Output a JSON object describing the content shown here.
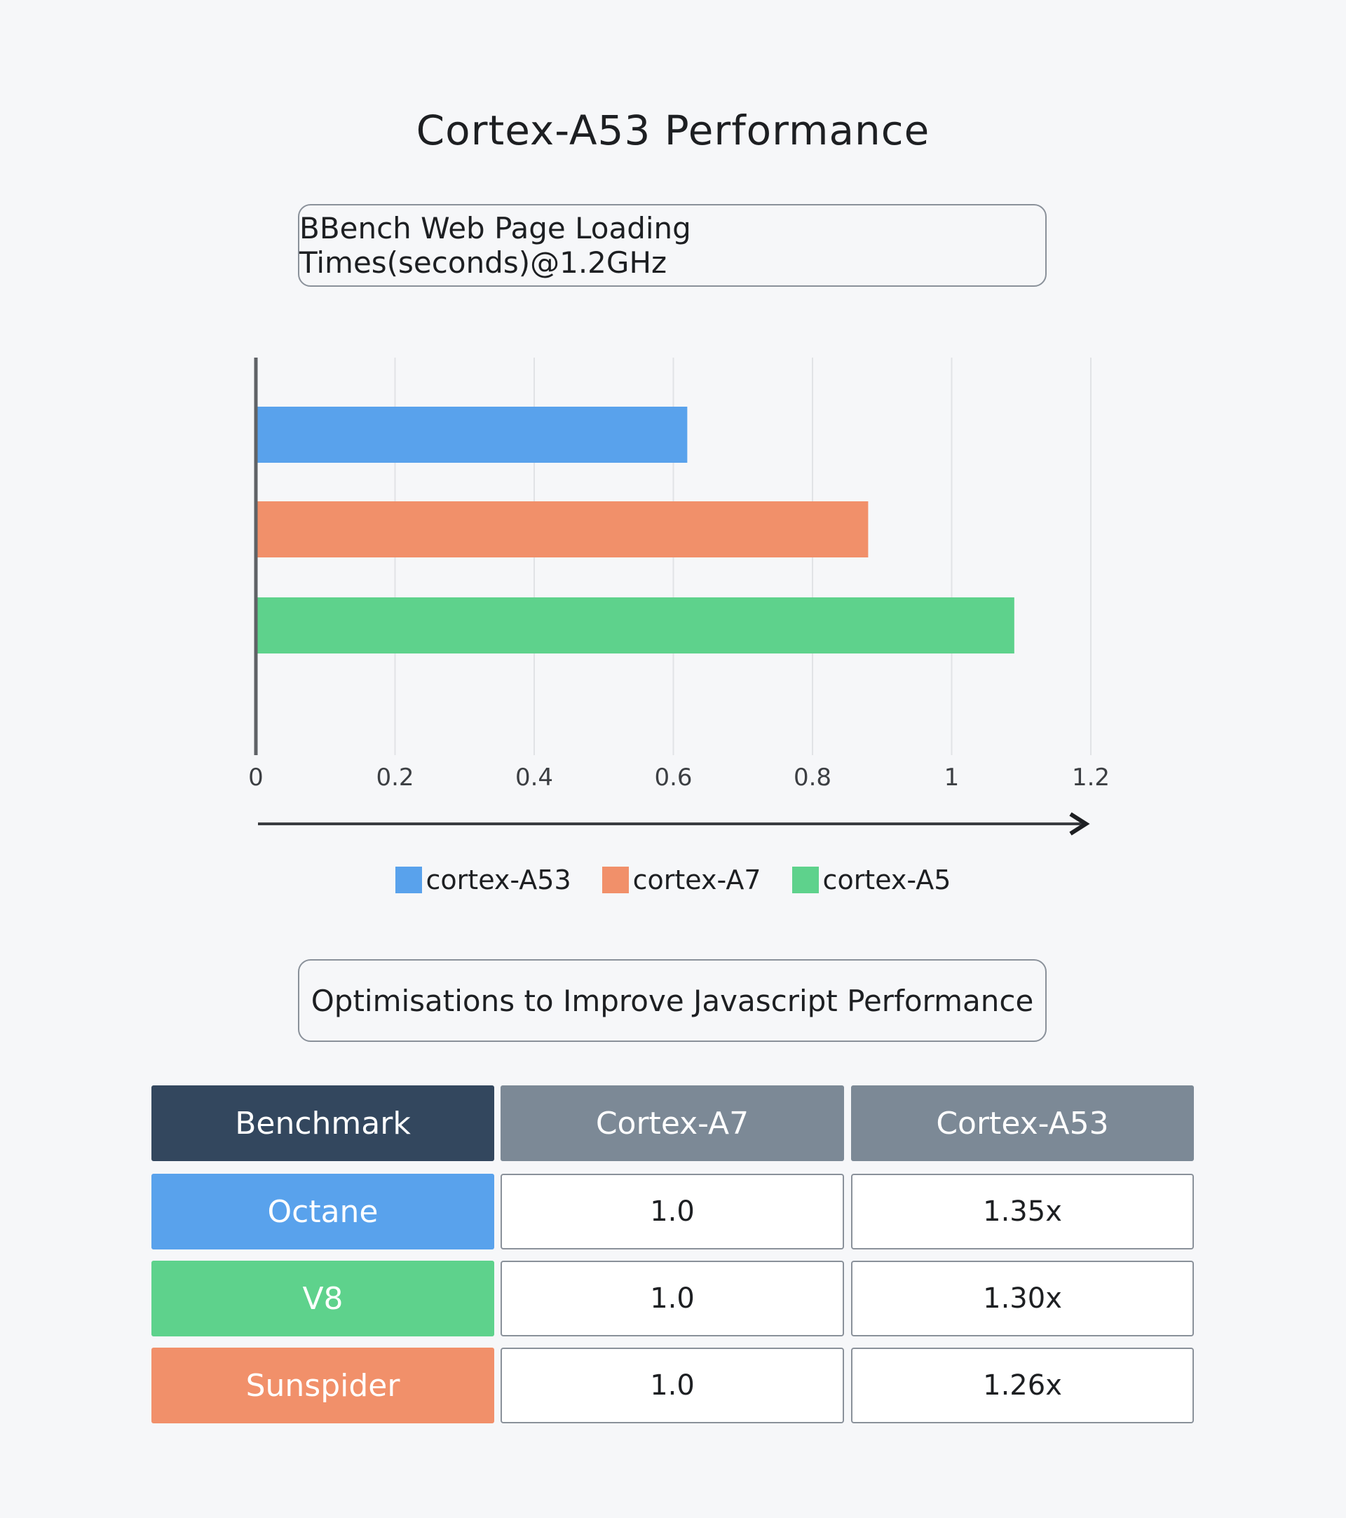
{
  "page": {
    "title": "Cortex-A53 Performance",
    "chart_box_title": "BBench Web Page Loading Times(seconds)@1.2GHz",
    "table_box_title": "Optimisations to Improve Javascript Performance"
  },
  "colors": {
    "a53": "#59a2ec",
    "a7": "#f1906a",
    "a5": "#5ed28c",
    "header_dark": "#33475e",
    "header_gray": "#7c8996",
    "axis": "#5f6266",
    "grid": "#e1e3e6"
  },
  "chart_data": {
    "type": "bar",
    "orientation": "horizontal",
    "title": "BBench Web Page Loading Times(seconds)@1.2GHz",
    "xlabel": "",
    "ylabel": "",
    "xlim": [
      0,
      1.2
    ],
    "xticks": [
      "0",
      "0.2",
      "0.4",
      "0.6",
      "0.8",
      "1",
      "1.2"
    ],
    "grid": true,
    "legend_position": "bottom",
    "series": [
      {
        "name": "cortex-A53",
        "value": 0.62,
        "color": "#59a2ec"
      },
      {
        "name": "cortex-A7",
        "value": 0.88,
        "color": "#f1906a"
      },
      {
        "name": "cortex-A5",
        "value": 1.09,
        "color": "#5ed28c"
      }
    ]
  },
  "table": {
    "headers": [
      "Benchmark",
      "Cortex-A7",
      "Cortex-A53"
    ],
    "rows": [
      {
        "label": "Octane",
        "a7": "1.0",
        "a53": "1.35x",
        "color": "#59a2ec"
      },
      {
        "label": "V8",
        "a7": "1.0",
        "a53": "1.30x",
        "color": "#5ed28c"
      },
      {
        "label": "Sunspider",
        "a7": "1.0",
        "a53": "1.26x",
        "color": "#f1906a"
      }
    ]
  }
}
